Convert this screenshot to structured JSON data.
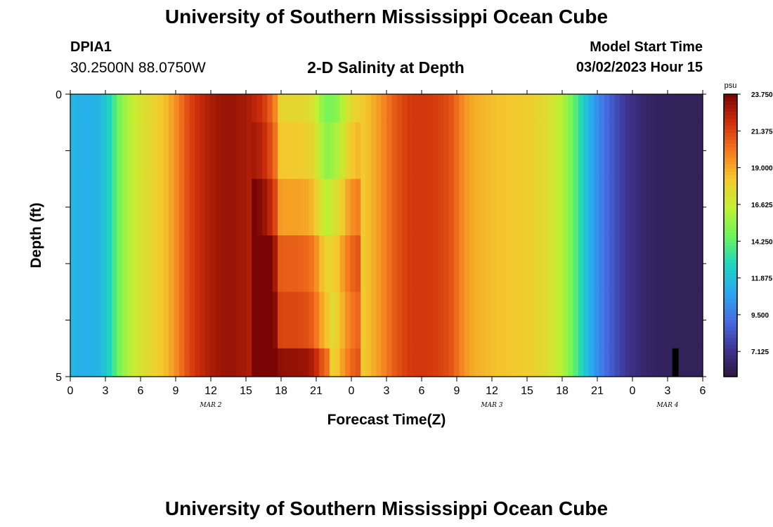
{
  "header": {
    "title": "University of Southern Mississippi Ocean Cube",
    "station_id": "DPIA1",
    "coordinates": "30.2500N  88.0750W",
    "subtitle": "2-D Salinity at Depth",
    "model_start_label": "Model Start Time",
    "model_start_time": "03/02/2023 Hour 15"
  },
  "footer": {
    "title": "University of Southern Mississippi Ocean Cube"
  },
  "chart_data": {
    "type": "heatmap",
    "title": "2-D Salinity at Depth",
    "xlabel": "Forecast Time(Z)",
    "ylabel": "Depth (ft)",
    "x_tick_labels": [
      "0",
      "3",
      "6",
      "9",
      "12",
      "15",
      "18",
      "21",
      "0",
      "3",
      "6",
      "9",
      "12",
      "15",
      "18",
      "21",
      "0",
      "3",
      "6"
    ],
    "date_labels": [
      {
        "label": "MAR 2",
        "hour": 12
      },
      {
        "label": "MAR 3",
        "hour": 36
      },
      {
        "label": "MAR 4",
        "hour": 51
      }
    ],
    "y_tick_labels": [
      "0",
      "5"
    ],
    "ylim": [
      0,
      5
    ],
    "x_range_hours": [
      0,
      54
    ],
    "depth_levels": [
      "0-0.5",
      "0.5-1.5",
      "1.5-2.5",
      "2.5-3.5",
      "3.5-4.5",
      "4.5-5"
    ],
    "colorbar": {
      "unit": "psu",
      "tick_labels": [
        "23.750",
        "21.375",
        "19.000",
        "16.625",
        "14.250",
        "11.875",
        "9.500",
        "7.125"
      ],
      "min": 5.5,
      "max": 23.75
    },
    "surface_salinity": [
      11.5,
      11.3,
      11.2,
      11.2,
      11.3,
      11.5,
      12.0,
      12.8,
      13.8,
      14.8,
      15.6,
      16.2,
      16.7,
      17.0,
      17.3,
      17.6,
      17.9,
      18.2,
      18.6,
      19.1,
      19.7,
      20.4,
      21.0,
      21.5,
      21.9,
      22.2,
      22.5,
      22.7,
      22.9,
      23.0,
      23.0,
      23.0,
      22.9,
      22.8,
      22.6,
      22.3,
      22.0,
      21.5,
      20.8,
      19.8,
      17.8,
      17.7,
      17.7,
      17.7,
      17.6,
      17.5,
      17.2,
      16.5,
      15.5,
      14.8,
      14.9,
      15.3,
      16.2,
      17.0,
      17.6,
      17.9,
      18.2,
      18.5,
      18.9,
      19.3,
      19.8,
      20.3,
      20.8,
      21.1,
      21.4,
      21.6,
      21.7,
      21.7,
      21.7,
      21.6,
      21.5,
      21.4,
      21.2,
      20.9,
      20.4,
      19.8,
      19.3,
      19.0,
      18.8,
      18.7,
      18.6,
      18.5,
      18.4,
      18.4,
      18.3,
      18.2,
      18.2,
      18.1,
      18.0,
      17.9,
      17.7,
      17.5,
      17.2,
      16.8,
      16.3,
      15.7,
      14.9,
      14.0,
      13.0,
      12.0,
      11.0,
      10.2,
      9.6,
      9.0,
      8.5,
      8.0,
      7.6,
      7.2,
      6.9,
      6.7,
      6.5,
      6.4,
      6.3,
      6.2,
      6.2,
      6.2,
      6.1,
      6.1,
      6.1,
      6.1,
      6.1,
      6.1
    ],
    "band_shift": [
      {
        "start_hour": 15.5,
        "end_hour": 22,
        "adds_psu_by_level": [
          0,
          0.5,
          1.5,
          3.0,
          3.6,
          5.5
        ]
      },
      {
        "start_hour": 22,
        "end_hour": 25,
        "adds_psu_by_level": [
          0,
          0.7,
          2.0,
          3.0,
          2.6,
          3.0
        ]
      }
    ],
    "notes": [
      "Salinity increases with depth during the MAR 2 afternoon maximum (15Z-24Z).",
      "A small dark bar near hour 51 at 4.5-5 ft indicates very low salinity."
    ]
  }
}
